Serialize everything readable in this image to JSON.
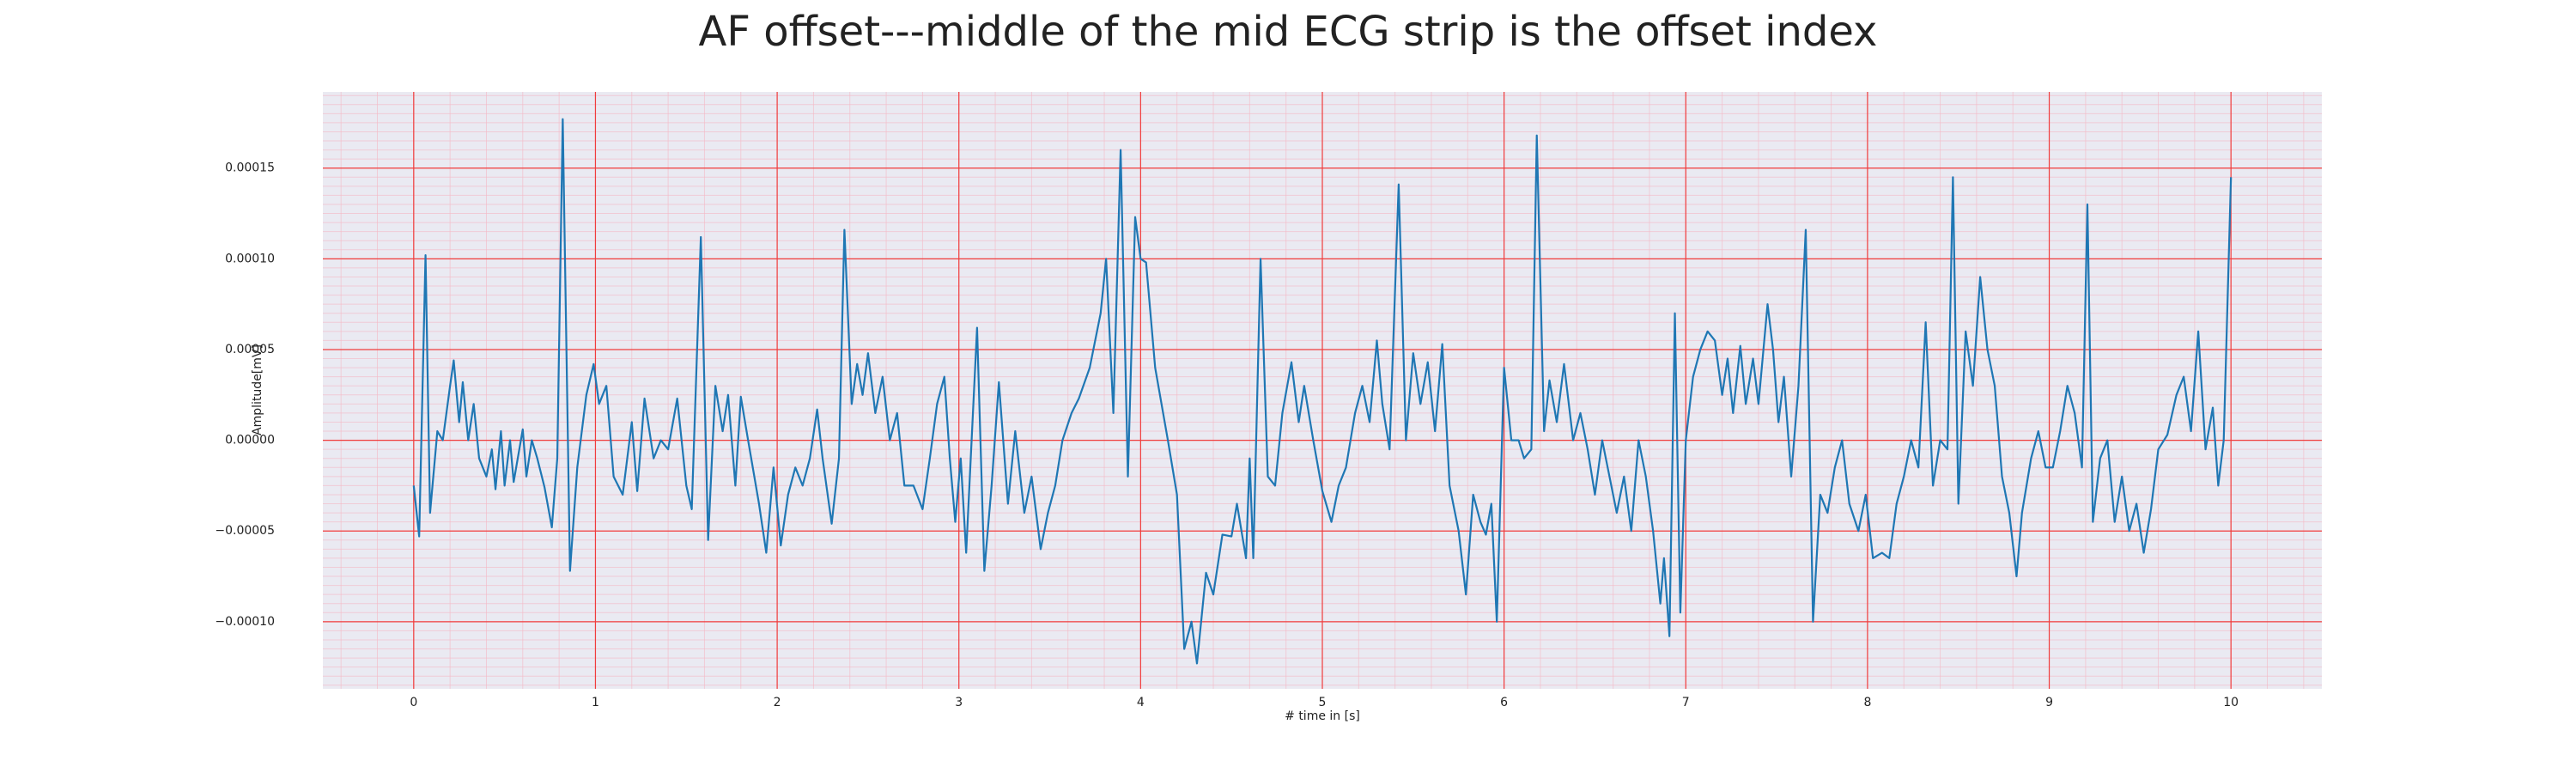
{
  "chart_data": {
    "type": "line",
    "title": "AF offset---middle of the mid ECG strip is the offset index",
    "xlabel": "# time in [s]",
    "ylabel": "Amplitude[mV]",
    "color": "#1f77b4",
    "grid": true,
    "minor_grid": true,
    "xlim": [
      -0.5,
      10.5
    ],
    "xticks": [
      0,
      1,
      2,
      3,
      4,
      5,
      6,
      7,
      8,
      9,
      10
    ],
    "ylim": [
      -0.000137,
      0.000192
    ],
    "yticks": [
      {
        "value": -0.0001,
        "label": "−0.00010"
      },
      {
        "value": -5e-05,
        "label": "−0.00005"
      },
      {
        "value": 0,
        "label": "0.00000"
      },
      {
        "value": 5e-05,
        "label": "0.00005"
      },
      {
        "value": 0.0001,
        "label": "0.00010"
      },
      {
        "value": 0.00015,
        "label": "0.00015"
      }
    ],
    "x": [
      0,
      0.03,
      0.065,
      0.09,
      0.13,
      0.16,
      0.2,
      0.22,
      0.25,
      0.27,
      0.3,
      0.33,
      0.36,
      0.4,
      0.43,
      0.45,
      0.48,
      0.5,
      0.53,
      0.55,
      0.6,
      0.62,
      0.65,
      0.68,
      0.72,
      0.76,
      0.79,
      0.82,
      0.86,
      0.9,
      0.95,
      0.99,
      1.02,
      1.06,
      1.1,
      1.15,
      1.2,
      1.23,
      1.27,
      1.32,
      1.36,
      1.4,
      1.45,
      1.5,
      1.53,
      1.58,
      1.62,
      1.66,
      1.7,
      1.73,
      1.77,
      1.8,
      1.84,
      1.9,
      1.94,
      1.98,
      2.02,
      2.06,
      2.1,
      2.14,
      2.18,
      2.22,
      2.25,
      2.3,
      2.34,
      2.37,
      2.41,
      2.44,
      2.47,
      2.5,
      2.54,
      2.58,
      2.62,
      2.66,
      2.7,
      2.75,
      2.8,
      2.84,
      2.88,
      2.92,
      2.95,
      2.98,
      3.01,
      3.04,
      3.1,
      3.14,
      3.18,
      3.22,
      3.27,
      3.31,
      3.36,
      3.4,
      3.45,
      3.49,
      3.53,
      3.57,
      3.62,
      3.66,
      3.72,
      3.78,
      3.81,
      3.85,
      3.89,
      3.93,
      3.97,
      4.0,
      4.03,
      4.08,
      4.15,
      4.2,
      4.24,
      4.28,
      4.31,
      4.36,
      4.4,
      4.45,
      4.5,
      4.53,
      4.58,
      4.6,
      4.62,
      4.66,
      4.7,
      4.74,
      4.78,
      4.83,
      4.87,
      4.9,
      4.95,
      5.0,
      5.05,
      5.09,
      5.13,
      5.18,
      5.22,
      5.26,
      5.3,
      5.33,
      5.37,
      5.42,
      5.46,
      5.5,
      5.54,
      5.58,
      5.62,
      5.66,
      5.7,
      5.75,
      5.79,
      5.83,
      5.87,
      5.9,
      5.93,
      5.96,
      6.0,
      6.04,
      6.08,
      6.11,
      6.15,
      6.18,
      6.22,
      6.25,
      6.29,
      6.33,
      6.38,
      6.42,
      6.46,
      6.5,
      6.54,
      6.58,
      6.62,
      6.66,
      6.7,
      6.74,
      6.78,
      6.82,
      6.86,
      6.88,
      6.91,
      6.94,
      6.97,
      7.0,
      7.04,
      7.08,
      7.12,
      7.16,
      7.2,
      7.23,
      7.26,
      7.3,
      7.33,
      7.37,
      7.4,
      7.45,
      7.48,
      7.51,
      7.54,
      7.58,
      7.62,
      7.66,
      7.7,
      7.74,
      7.78,
      7.82,
      7.86,
      7.9,
      7.95,
      7.99,
      8.03,
      8.08,
      8.12,
      8.16,
      8.2,
      8.24,
      8.28,
      8.32,
      8.36,
      8.4,
      8.44,
      8.47,
      8.5,
      8.54,
      8.58,
      8.62,
      8.66,
      8.7,
      8.74,
      8.78,
      8.82,
      8.85,
      8.9,
      8.94,
      8.98,
      9.02,
      9.06,
      9.1,
      9.14,
      9.18,
      9.21,
      9.24,
      9.28,
      9.32,
      9.36,
      9.4,
      9.44,
      9.48,
      9.52,
      9.56,
      9.6,
      9.65,
      9.7,
      9.74,
      9.78,
      9.82,
      9.86,
      9.9,
      9.93,
      9.96,
      10.0
    ],
    "values": [
      -2.5e-05,
      -5.3e-05,
      0.000102,
      -4e-05,
      5e-06,
      0,
      3e-05,
      4.4e-05,
      1e-05,
      3.2e-05,
      0,
      2e-05,
      -1e-05,
      -2e-05,
      -5e-06,
      -2.7e-05,
      5e-06,
      -2.5e-05,
      0,
      -2.3e-05,
      6e-06,
      -2e-05,
      0,
      -1e-05,
      -2.6e-05,
      -4.8e-05,
      -1e-05,
      0.000177,
      -7.2e-05,
      -1.5e-05,
      2.5e-05,
      4.2e-05,
      2e-05,
      3e-05,
      -2e-05,
      -3e-05,
      1e-05,
      -2.8e-05,
      2.3e-05,
      -1e-05,
      0,
      -5e-06,
      2.3e-05,
      -2.5e-05,
      -3.8e-05,
      0.000112,
      -5.5e-05,
      3e-05,
      5e-06,
      2.5e-05,
      -2.5e-05,
      2.4e-05,
      0,
      -3.5e-05,
      -6.2e-05,
      -1.5e-05,
      -5.8e-05,
      -3e-05,
      -1.5e-05,
      -2.5e-05,
      -1e-05,
      1.7e-05,
      -1e-05,
      -4.6e-05,
      -1e-05,
      0.000116,
      2e-05,
      4.2e-05,
      2.5e-05,
      4.8e-05,
      1.5e-05,
      3.5e-05,
      0,
      1.5e-05,
      -2.5e-05,
      -2.5e-05,
      -3.8e-05,
      -1e-05,
      2e-05,
      3.5e-05,
      -1e-05,
      -4.5e-05,
      -1e-05,
      -6.2e-05,
      6.2e-05,
      -7.2e-05,
      -2.5e-05,
      3.2e-05,
      -3.5e-05,
      5e-06,
      -4e-05,
      -2e-05,
      -6e-05,
      -4e-05,
      -2.5e-05,
      0,
      1.5e-05,
      2.3e-05,
      4e-05,
      7e-05,
      0.0001,
      1.5e-05,
      0.00016,
      -2e-05,
      0.000123,
      0.0001,
      9.8e-05,
      4e-05,
      0,
      -3e-05,
      -0.000115,
      -0.0001,
      -0.000123,
      -7.3e-05,
      -8.5e-05,
      -5.2e-05,
      -5.3e-05,
      -3.5e-05,
      -6.5e-05,
      -1e-05,
      -6.5e-05,
      0.0001,
      -2e-05,
      -2.5e-05,
      1.5e-05,
      4.3e-05,
      1e-05,
      3e-05,
      0,
      -2.8e-05,
      -4.5e-05,
      -2.5e-05,
      -1.5e-05,
      1.5e-05,
      3e-05,
      1e-05,
      5.5e-05,
      2e-05,
      -5e-06,
      0.000141,
      0,
      4.8e-05,
      2e-05,
      4.3e-05,
      5e-06,
      5.3e-05,
      -2.5e-05,
      -5e-05,
      -8.5e-05,
      -3e-05,
      -4.5e-05,
      -5.2e-05,
      -3.5e-05,
      -0.0001,
      4e-05,
      0,
      0,
      -1e-05,
      -5e-06,
      0.000168,
      5e-06,
      3.3e-05,
      1e-05,
      4.2e-05,
      0,
      1.5e-05,
      -5e-06,
      -3e-05,
      0,
      -2e-05,
      -4e-05,
      -2e-05,
      -5e-05,
      0,
      -2e-05,
      -5e-05,
      -9e-05,
      -6.5e-05,
      -0.000108,
      7e-05,
      -9.5e-05,
      0,
      3.5e-05,
      5e-05,
      6e-05,
      5.5e-05,
      2.5e-05,
      4.5e-05,
      1.5e-05,
      5.2e-05,
      2e-05,
      4.5e-05,
      2e-05,
      7.5e-05,
      5e-05,
      1e-05,
      3.5e-05,
      -2e-05,
      3e-05,
      0.000116,
      -0.0001,
      -3e-05,
      -4e-05,
      -1.5e-05,
      0,
      -3.5e-05,
      -5e-05,
      -3e-05,
      -6.5e-05,
      -6.2e-05,
      -6.5e-05,
      -3.5e-05,
      -2e-05,
      0,
      -1.5e-05,
      6.5e-05,
      -2.5e-05,
      0,
      -5e-06,
      0.000145,
      -3.5e-05,
      6e-05,
      3e-05,
      9e-05,
      5e-05,
      3e-05,
      -2e-05,
      -4e-05,
      -7.5e-05,
      -4e-05,
      -1e-05,
      5e-06,
      -1.5e-05,
      -1.5e-05,
      5e-06,
      3e-05,
      1.5e-05,
      -1.5e-05,
      0.00013,
      -4.5e-05,
      -1e-05,
      0,
      -4.5e-05,
      -2e-05,
      -5e-05,
      -3.5e-05,
      -6.2e-05,
      -3.8e-05,
      -5e-06,
      3e-06,
      2.5e-05,
      3.5e-05,
      5e-06,
      6e-05,
      -5e-06,
      1.8e-05,
      -2.5e-05,
      0,
      0.000145
    ]
  }
}
